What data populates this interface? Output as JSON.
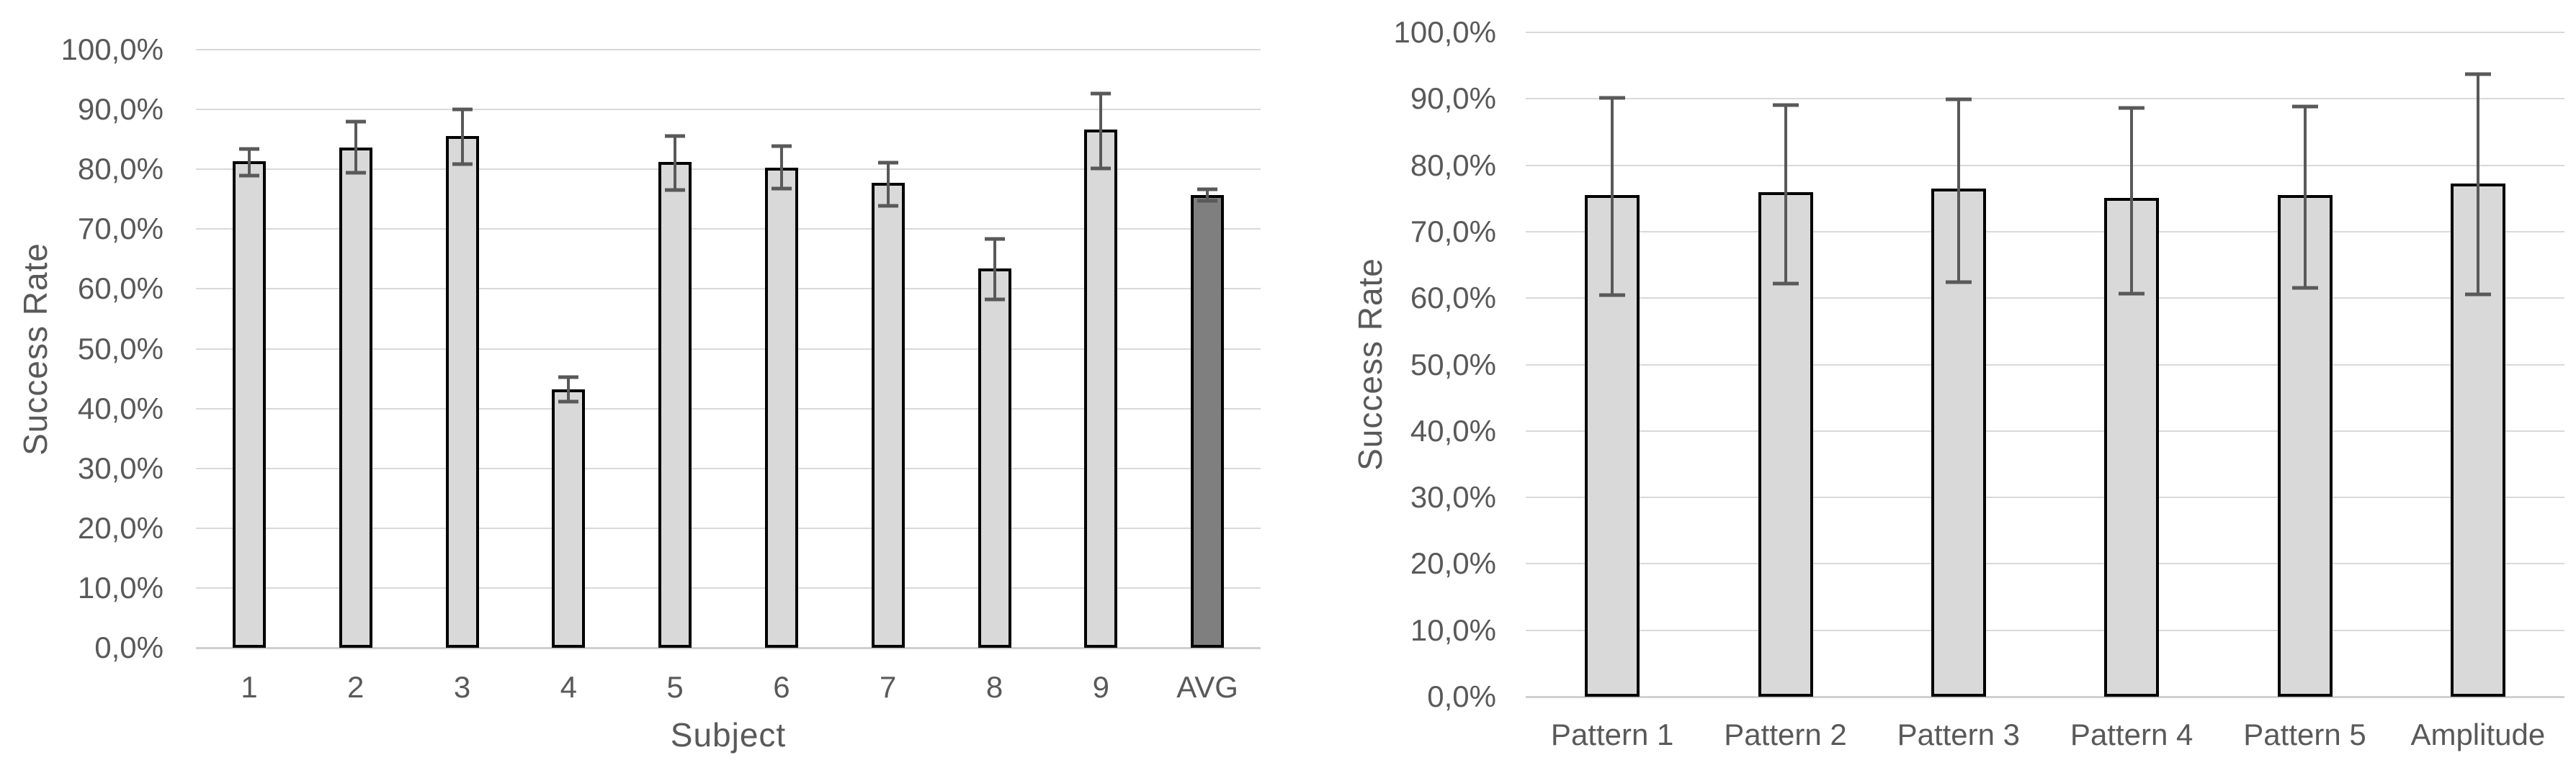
{
  "colors": {
    "background": "#ffffff",
    "bar_fill": "#d9d9d9",
    "bar_fill_highlight": "#7f7f7f",
    "bar_border": "#000000",
    "error_bar": "#595959",
    "gridline": "#d9d9d9",
    "axis_line": "#cfcfcf",
    "text": "#595959"
  },
  "chart_data": [
    {
      "type": "bar",
      "title": "",
      "ylabel": "Success Rate",
      "xlabel": "Subject",
      "categories": [
        "1",
        "2",
        "3",
        "4",
        "5",
        "6",
        "7",
        "8",
        "9",
        "AVG"
      ],
      "values": [
        81.3,
        83.6,
        85.6,
        43.2,
        81.2,
        80.3,
        77.7,
        63.4,
        86.7,
        75.7
      ],
      "error_low": [
        78.9,
        79.4,
        80.9,
        41.2,
        76.5,
        76.8,
        73.9,
        58.2,
        80.2,
        74.7
      ],
      "error_high": [
        83.4,
        88.0,
        90.0,
        45.3,
        85.5,
        83.9,
        81.1,
        68.4,
        92.6,
        76.6
      ],
      "highlight_category": "AVG",
      "ylim": [
        0,
        100
      ],
      "ytick_step": 10,
      "yticks_bottom_to_top": [
        "0,0%",
        "10,0%",
        "20,0%",
        "30,0%",
        "40,0%",
        "50,0%",
        "60,0%",
        "70,0%",
        "80,0%",
        "90,0%",
        "100,0%"
      ],
      "grid": true,
      "legend": null
    },
    {
      "type": "bar",
      "title": "",
      "ylabel": "Success Rate",
      "xlabel": "",
      "categories": [
        "Pattern 1",
        "Pattern 2",
        "Pattern 3",
        "Pattern 4",
        "Pattern 5",
        "Amplitude"
      ],
      "values": [
        75.5,
        76.0,
        76.5,
        75.1,
        75.5,
        77.3
      ],
      "error_low": [
        60.5,
        62.2,
        62.4,
        60.7,
        61.5,
        60.6
      ],
      "error_high": [
        90.1,
        89.1,
        89.9,
        88.6,
        88.8,
        93.7
      ],
      "highlight_category": null,
      "ylim": [
        0,
        100
      ],
      "ytick_step": 10,
      "yticks_bottom_to_top": [
        "0,0%",
        "10,0%",
        "20,0%",
        "30,0%",
        "40,0%",
        "50,0%",
        "60,0%",
        "70,0%",
        "80,0%",
        "90,0%",
        "100,0%"
      ],
      "grid": true,
      "legend": null
    }
  ]
}
